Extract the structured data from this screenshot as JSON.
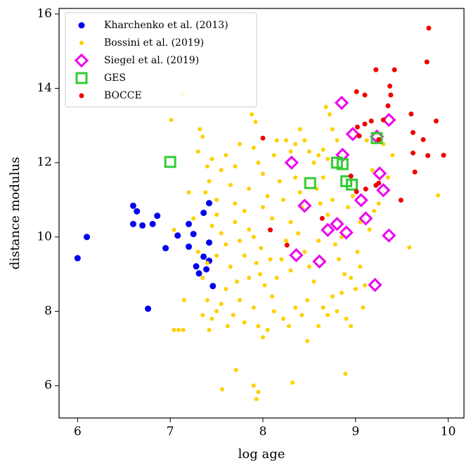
{
  "chart_data": {
    "type": "scatter",
    "xlabel": "log age",
    "ylabel": "distance modulus",
    "xlim": [
      5.8,
      10.17
    ],
    "ylim": [
      5.13,
      16.15
    ],
    "xticks": [
      6,
      7,
      8,
      9,
      10
    ],
    "yticks": [
      6,
      8,
      10,
      12,
      14,
      16
    ],
    "legend": "upper left",
    "series": [
      {
        "name": "Kharchenko et al. (2013)",
        "color": "#0000ee",
        "marker": "circle",
        "size": 4.5,
        "x": [
          6.0,
          6.1,
          6.6,
          6.64,
          6.6,
          6.7,
          6.81,
          6.86,
          6.95,
          7.08,
          7.2,
          7.25,
          7.2,
          7.28,
          7.31,
          7.36,
          7.39,
          7.42,
          7.42,
          7.46,
          6.76,
          7.36,
          7.42
        ],
        "y": [
          9.43,
          10.0,
          10.84,
          10.69,
          10.35,
          10.31,
          10.35,
          10.57,
          9.7,
          10.04,
          10.35,
          10.08,
          9.74,
          9.21,
          9.02,
          9.47,
          9.13,
          9.36,
          9.85,
          8.68,
          8.07,
          10.65,
          10.91
        ]
      },
      {
        "name": "Bossini et al. (2019)",
        "color": "#ffd000",
        "marker": "circle",
        "size": 3,
        "x": [
          7.01,
          7.13,
          7.04,
          7.04,
          7.09,
          7.14,
          7.15,
          7.71,
          7.56,
          7.9,
          7.95,
          7.93,
          8.32,
          8.89,
          9.58,
          9.89,
          7.32,
          7.35,
          7.3,
          7.4,
          7.45,
          7.38,
          7.42,
          7.5,
          7.55,
          7.6,
          7.65,
          7.7,
          7.5,
          7.45,
          7.55,
          7.6,
          7.7,
          7.75,
          7.8,
          7.85,
          7.9,
          7.95,
          7.88,
          7.92,
          8.0,
          8.05,
          8.1,
          7.98,
          7.93,
          7.97,
          8.02,
          7.85,
          7.8,
          7.72,
          7.65,
          7.6,
          7.55,
          7.5,
          7.45,
          7.4,
          7.35,
          7.3,
          7.25,
          7.2,
          7.62,
          7.68,
          7.75,
          7.8,
          7.9,
          7.95,
          8.0,
          8.05,
          8.1,
          8.15,
          8.2,
          8.25,
          8.3,
          8.22,
          8.18,
          8.12,
          8.15,
          8.25,
          8.3,
          8.35,
          8.4,
          8.45,
          8.5,
          8.55,
          8.6,
          8.65,
          8.7,
          8.75,
          8.8,
          8.72,
          8.68,
          8.35,
          8.4,
          8.42,
          8.38,
          8.45,
          8.5,
          8.55,
          8.48,
          8.42,
          8.35,
          8.28,
          8.22,
          8.48,
          8.6,
          8.65,
          8.7,
          8.75,
          8.8,
          8.85,
          8.9,
          8.95,
          8.88,
          8.82,
          8.78,
          8.7,
          8.62,
          8.58,
          8.65,
          8.75,
          8.92,
          8.97,
          9.02,
          9.05,
          9.1,
          9.08,
          9.0,
          8.95,
          9.15,
          9.2,
          9.25,
          9.3,
          9.35,
          9.4,
          9.12,
          9.18,
          7.4,
          7.5,
          7.35,
          7.42,
          7.85,
          7.9,
          8.0,
          7.7,
          7.75,
          8.08,
          8.12,
          8.3,
          8.6,
          8.85,
          9.05
        ],
        "y": [
          13.15,
          13.86,
          10.19,
          7.5,
          7.5,
          7.5,
          8.3,
          6.42,
          5.9,
          6.0,
          5.83,
          5.64,
          6.08,
          6.32,
          9.72,
          11.12,
          12.9,
          12.7,
          12.3,
          11.9,
          12.1,
          11.2,
          11.5,
          11.0,
          11.8,
          12.2,
          11.4,
          10.9,
          10.6,
          10.3,
          10.1,
          9.8,
          10.4,
          9.9,
          10.7,
          11.3,
          12.4,
          12.0,
          13.3,
          13.1,
          11.7,
          11.1,
          10.5,
          9.7,
          9.3,
          9.0,
          8.7,
          8.9,
          9.5,
          8.8,
          9.2,
          8.6,
          8.2,
          8.0,
          7.8,
          8.3,
          8.9,
          9.6,
          10.5,
          11.2,
          7.6,
          7.9,
          8.3,
          7.7,
          8.1,
          7.6,
          7.3,
          7.5,
          8.4,
          8.9,
          9.4,
          9.9,
          10.4,
          11.0,
          11.5,
          12.2,
          12.6,
          12.6,
          12.3,
          12.5,
          12.9,
          12.6,
          12.3,
          12.0,
          12.2,
          12.35,
          12.1,
          12.9,
          12.6,
          13.3,
          13.5,
          11.6,
          11.2,
          10.8,
          10.1,
          9.6,
          9.2,
          8.8,
          8.3,
          7.9,
          8.1,
          7.6,
          7.8,
          7.2,
          7.6,
          8.1,
          7.9,
          8.4,
          8.0,
          8.5,
          7.8,
          7.6,
          9.0,
          9.4,
          9.8,
          10.6,
          10.9,
          11.3,
          11.6,
          11.0,
          10.8,
          11.1,
          9.6,
          9.2,
          8.7,
          8.1,
          8.6,
          8.9,
          10.2,
          10.7,
          10.9,
          12.5,
          11.6,
          12.2,
          12.6,
          11.8,
          9.3,
          9.5,
          7.9,
          7.5,
          10.2,
          10.0,
          10.8,
          11.9,
          12.5,
          9.4,
          8.0,
          9.1,
          9.9,
          10.0,
          10.4
        ]
      },
      {
        "name": "Siegel et al. (2019)",
        "color": "#ee00ee",
        "marker": "diamond",
        "size": 8,
        "x": [
          8.85,
          8.97,
          9.23,
          9.36,
          8.31,
          8.86,
          9.26,
          9.3,
          9.06,
          8.45,
          9.11,
          8.8,
          8.7,
          8.9,
          9.36,
          8.36,
          8.61,
          9.21
        ],
        "y": [
          13.61,
          12.77,
          12.7,
          13.15,
          12.0,
          12.21,
          11.71,
          11.26,
          10.99,
          10.84,
          10.5,
          10.35,
          10.19,
          10.12,
          10.04,
          9.51,
          9.34,
          8.71
        ]
      },
      {
        "name": "GES",
        "color": "#33cc33",
        "marker": "square",
        "size": 7,
        "x": [
          7.0,
          8.51,
          8.8,
          8.86,
          8.9,
          8.96,
          9.23
        ],
        "y": [
          12.02,
          11.45,
          12.0,
          11.96,
          11.5,
          11.41,
          12.66
        ]
      },
      {
        "name": "BOCCE",
        "color": "#ee0000",
        "marker": "circle",
        "size": 3.5,
        "x": [
          9.79,
          9.77,
          9.22,
          9.42,
          9.37,
          9.38,
          9.01,
          9.1,
          9.35,
          9.17,
          9.02,
          9.1,
          9.3,
          9.6,
          9.87,
          9.62,
          9.73,
          9.25,
          9.04,
          9.62,
          9.78,
          9.95,
          8.0,
          8.95,
          9.25,
          9.64,
          9.11,
          9.01,
          8.64,
          8.08,
          8.26,
          9.49,
          9.22
        ],
        "y": [
          15.62,
          14.71,
          14.5,
          14.5,
          14.06,
          13.82,
          13.91,
          13.82,
          13.53,
          13.12,
          12.96,
          13.04,
          13.15,
          13.31,
          13.12,
          12.81,
          12.62,
          12.62,
          12.72,
          12.26,
          12.19,
          12.2,
          12.66,
          11.64,
          11.45,
          11.75,
          11.29,
          11.22,
          10.5,
          10.19,
          9.78,
          10.99,
          11.39
        ]
      }
    ]
  }
}
